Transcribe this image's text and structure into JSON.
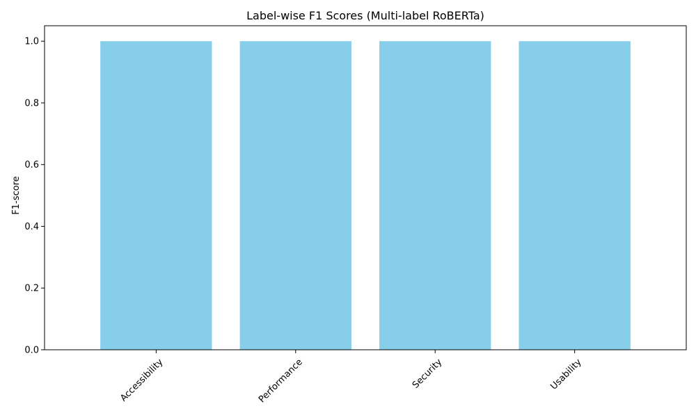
{
  "chart_data": {
    "type": "bar",
    "title": "Label-wise F1 Scores (Multi-label RoBERTa)",
    "xlabel": "",
    "ylabel": "F1-score",
    "categories": [
      "Accessibility",
      "Performance",
      "Security",
      "Usability"
    ],
    "values": [
      1.0,
      1.0,
      1.0,
      1.0
    ],
    "ylim": [
      0,
      1.05
    ],
    "yticks": [
      "0.0",
      "0.2",
      "0.4",
      "0.6",
      "0.8",
      "1.0"
    ],
    "grid": false,
    "legend": "none",
    "bar_color": "#87ceeb",
    "axis_color": "#000000"
  }
}
